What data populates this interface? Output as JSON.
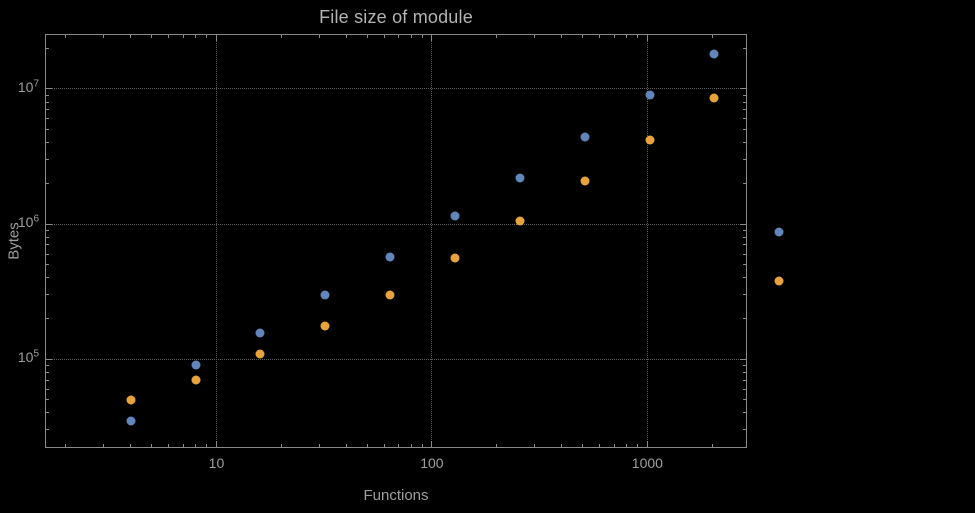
{
  "chart_data": {
    "type": "scatter",
    "title": "File size of module",
    "xlabel": "Functions",
    "ylabel": "Bytes",
    "x_scale": "log",
    "y_scale": "log",
    "xlim": [
      1.6,
      2900
    ],
    "ylim": [
      22000,
      25500000
    ],
    "grid": "major-only, dotted",
    "legend": "none",
    "frame": true,
    "clipping": false,
    "x_ticks": [
      {
        "value": 10,
        "label": "10"
      },
      {
        "value": 100,
        "label": "100"
      },
      {
        "value": 1000,
        "label": "1000"
      }
    ],
    "y_ticks": [
      {
        "value": 100000,
        "base": "10",
        "exp": "5"
      },
      {
        "value": 1000000,
        "base": "10",
        "exp": "6"
      },
      {
        "value": 10000000,
        "base": "10",
        "exp": "7"
      }
    ],
    "series": [
      {
        "name": "blue",
        "color": "#6186bb",
        "x": [
          4,
          8,
          16,
          32,
          64,
          128,
          256,
          512,
          1024,
          2048,
          4096
        ],
        "y": [
          35000,
          90000,
          155000,
          300000,
          570000,
          1150000,
          2200000,
          4400000,
          9000000,
          18000000,
          870000
        ]
      },
      {
        "name": "orange",
        "color": "#e8a33d",
        "x": [
          4,
          8,
          16,
          32,
          64,
          128,
          256,
          512,
          1024,
          2048,
          4096
        ],
        "y": [
          50000,
          70000,
          110000,
          175000,
          300000,
          560000,
          1050000,
          2100000,
          4200000,
          8500000,
          380000
        ]
      }
    ]
  },
  "styles": {
    "background": "#000000",
    "frame_color": "#8a8a8a",
    "grid_color": "#5f5f5f",
    "text_color": "#9e9e9e",
    "title_color": "#b3b3b3"
  }
}
